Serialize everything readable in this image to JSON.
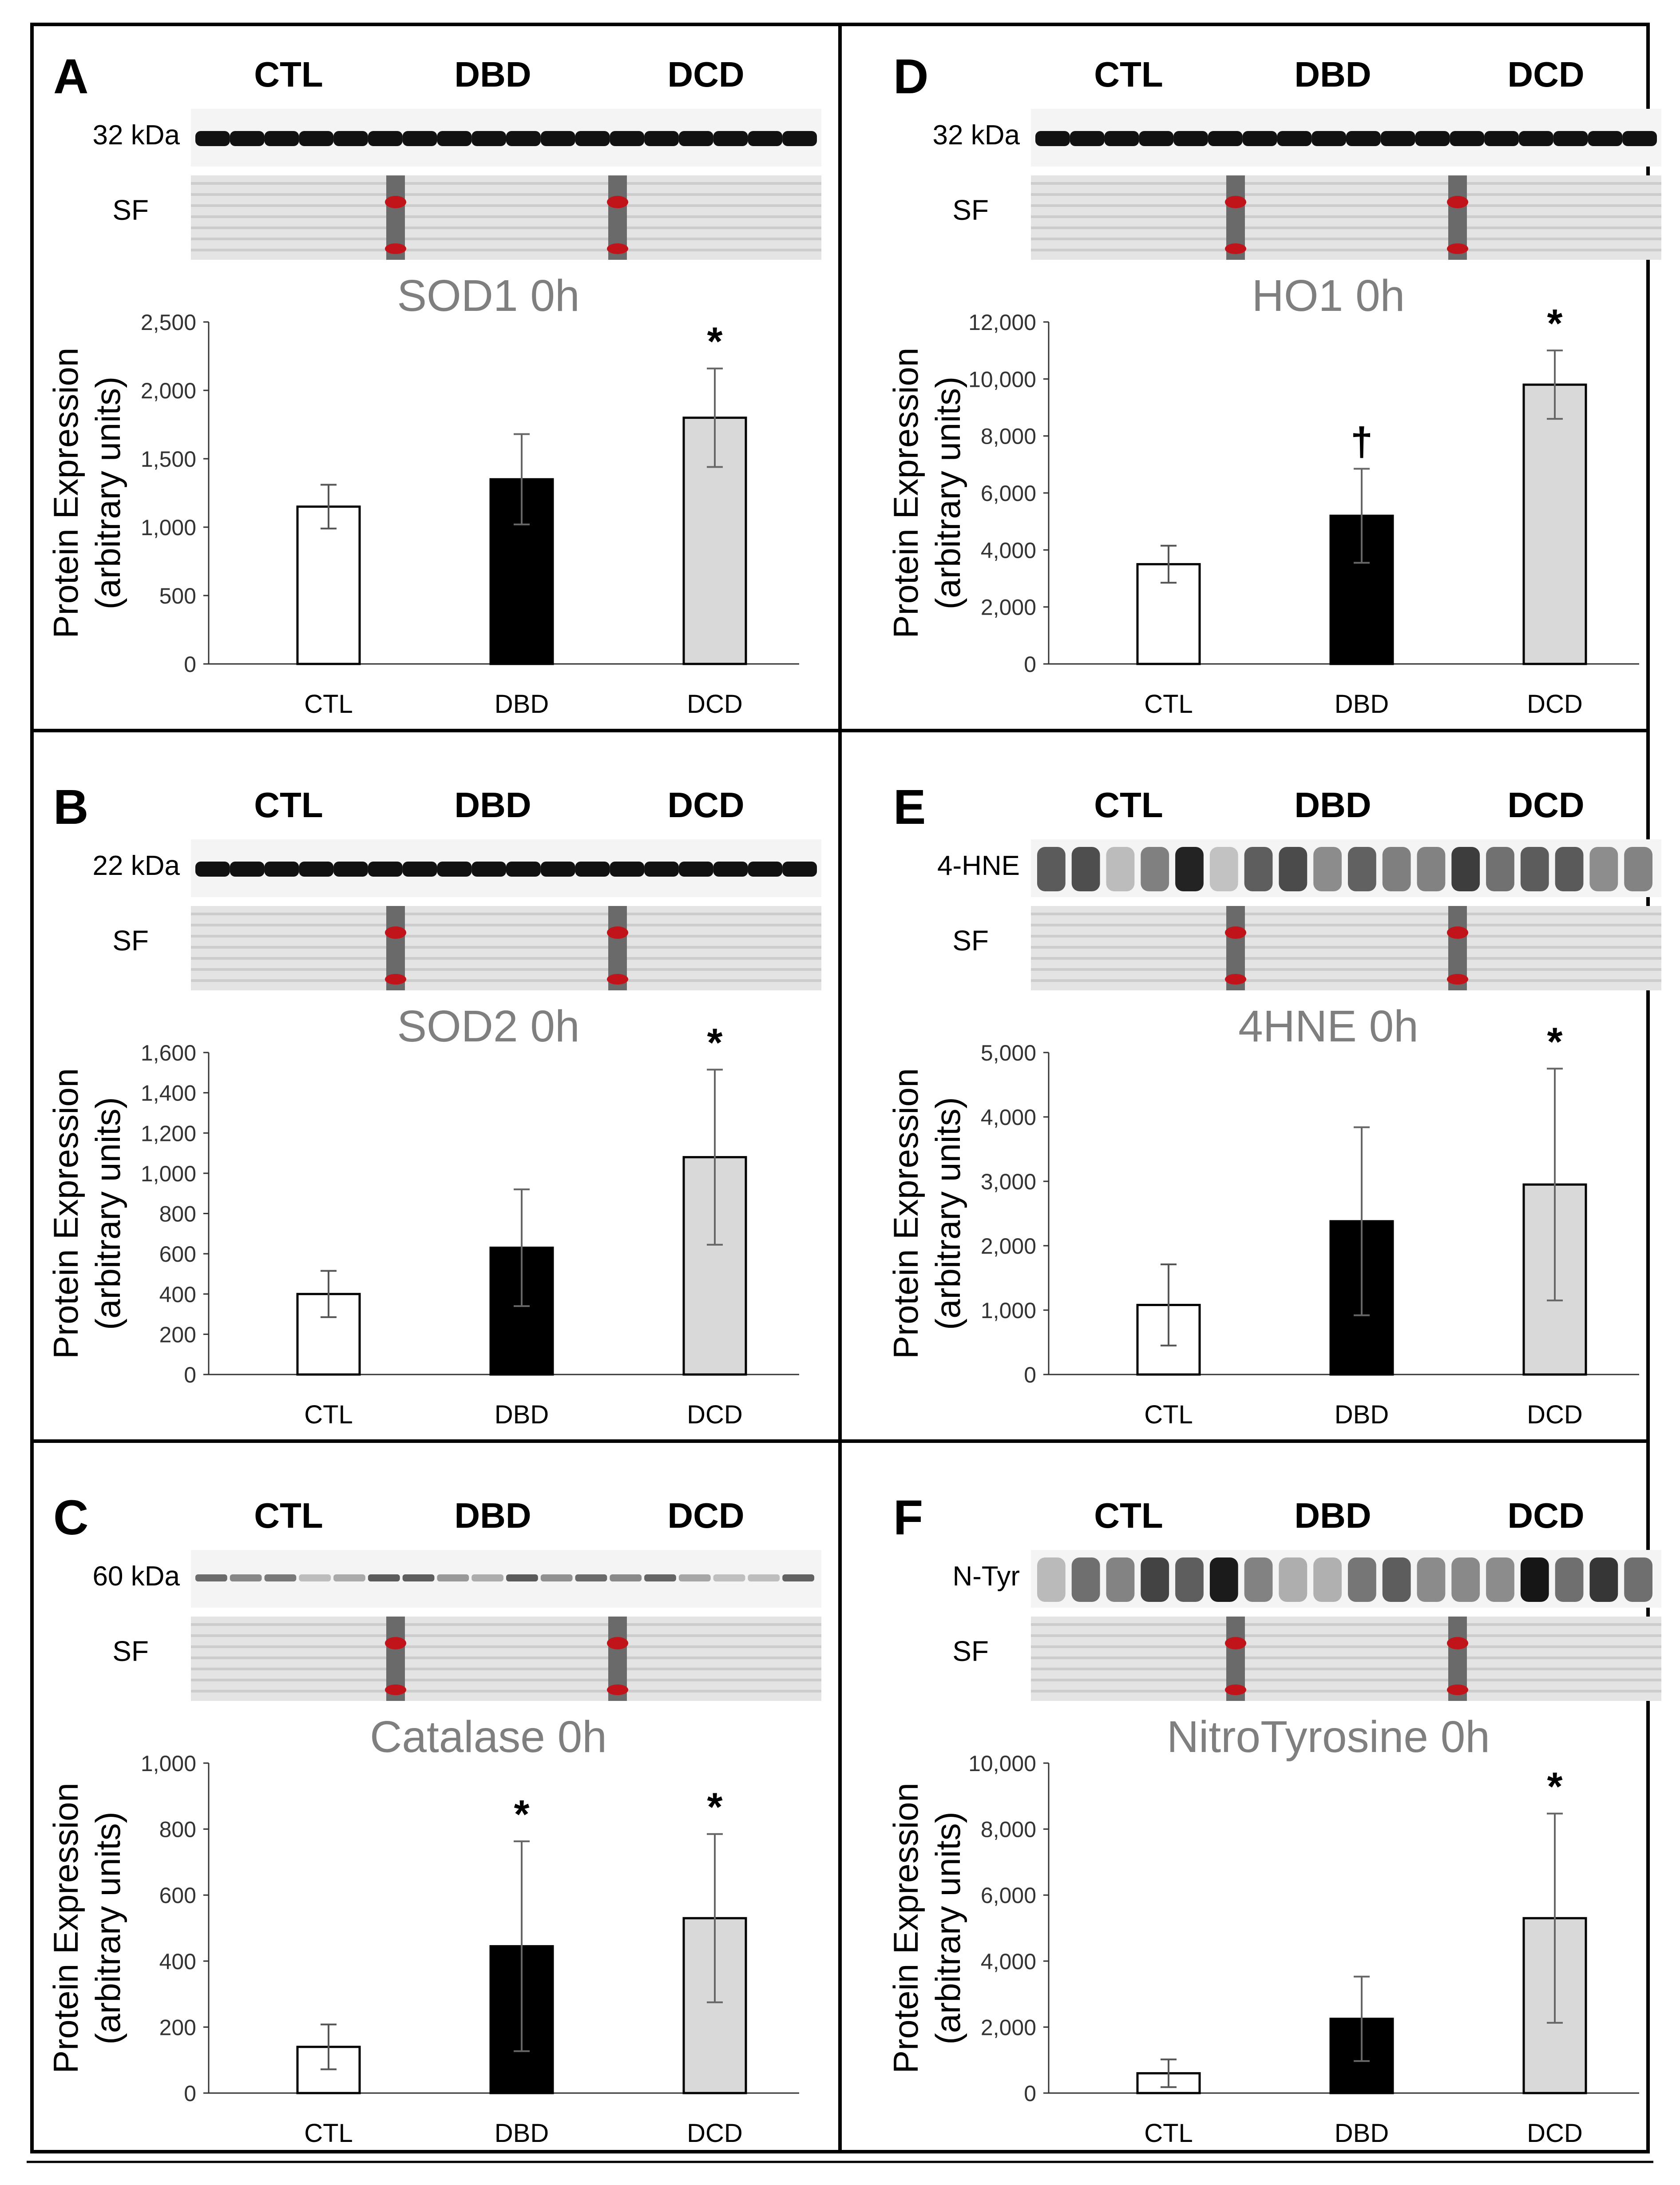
{
  "figure": {
    "panels": [
      {
        "letter": "A",
        "blot": {
          "groups": [
            "CTL",
            "DBD",
            "DCD"
          ],
          "marker": "32 kDa",
          "loading_label": "SF",
          "band_style": "solid"
        },
        "chart_data": {
          "type": "bar",
          "title": "SOD1 0h",
          "categories": [
            "CTL",
            "DBD",
            "DCD"
          ],
          "values": [
            1150,
            1350,
            1800
          ],
          "errors": [
            160,
            330,
            360
          ],
          "significance": [
            "",
            "",
            "*"
          ],
          "bar_colors": [
            "#ffffff",
            "#000000",
            "#d9d9d9"
          ],
          "ylim": [
            0,
            2500
          ],
          "yticks": [
            0,
            500,
            1000,
            1500,
            2000,
            2500
          ],
          "ytick_labels": [
            "0",
            "500",
            "1,000",
            "1,500",
            "2,000",
            "2,500"
          ],
          "ylabel": [
            "Protein Expression",
            "(arbitrary units)"
          ],
          "xlabel": ""
        }
      },
      {
        "letter": "D",
        "blot": {
          "groups": [
            "CTL",
            "DBD",
            "DCD"
          ],
          "marker": "32 kDa",
          "loading_label": "SF",
          "band_style": "solid"
        },
        "chart_data": {
          "type": "bar",
          "title": "HO1 0h",
          "categories": [
            "CTL",
            "DBD",
            "DCD"
          ],
          "values": [
            3500,
            5200,
            9800
          ],
          "errors": [
            650,
            1650,
            1200
          ],
          "significance": [
            "",
            "†",
            "*"
          ],
          "bar_colors": [
            "#ffffff",
            "#000000",
            "#d9d9d9"
          ],
          "ylim": [
            0,
            12000
          ],
          "yticks": [
            0,
            2000,
            4000,
            6000,
            8000,
            10000,
            12000
          ],
          "ytick_labels": [
            "0",
            "2,000",
            "4,000",
            "6,000",
            "8,000",
            "10,000",
            "12,000"
          ],
          "ylabel": [
            "Protein Expression",
            "(arbitrary units)"
          ],
          "xlabel": ""
        }
      },
      {
        "letter": "B",
        "blot": {
          "groups": [
            "CTL",
            "DBD",
            "DCD"
          ],
          "marker": "22 kDa",
          "loading_label": "SF",
          "band_style": "solid"
        },
        "chart_data": {
          "type": "bar",
          "title": "SOD2 0h",
          "categories": [
            "CTL",
            "DBD",
            "DCD"
          ],
          "values": [
            400,
            630,
            1080
          ],
          "errors": [
            115,
            290,
            435
          ],
          "significance": [
            "",
            "",
            "*"
          ],
          "bar_colors": [
            "#ffffff",
            "#000000",
            "#d9d9d9"
          ],
          "ylim": [
            0,
            1600
          ],
          "yticks": [
            0,
            200,
            400,
            600,
            800,
            1000,
            1200,
            1400,
            1600
          ],
          "ytick_labels": [
            "0",
            "200",
            "400",
            "600",
            "800",
            "1,000",
            "1,200",
            "1,400",
            "1,600"
          ],
          "ylabel": [
            "Protein Expression",
            "(arbitrary units)"
          ],
          "xlabel": ""
        }
      },
      {
        "letter": "E",
        "blot": {
          "groups": [
            "CTL",
            "DBD",
            "DCD"
          ],
          "marker": "4-HNE",
          "loading_label": "SF",
          "band_style": "smear"
        },
        "chart_data": {
          "type": "bar",
          "title": "4HNE 0h",
          "categories": [
            "CTL",
            "DBD",
            "DCD"
          ],
          "values": [
            1080,
            2380,
            2950
          ],
          "errors": [
            630,
            1460,
            1800
          ],
          "significance": [
            "",
            "",
            "*"
          ],
          "bar_colors": [
            "#ffffff",
            "#000000",
            "#d9d9d9"
          ],
          "ylim": [
            0,
            5000
          ],
          "yticks": [
            0,
            1000,
            2000,
            3000,
            4000,
            5000
          ],
          "ytick_labels": [
            "0",
            "1,000",
            "2,000",
            "3,000",
            "4,000",
            "5,000"
          ],
          "ylabel": [
            "Protein Expression",
            "(arbitrary units)"
          ],
          "xlabel": ""
        }
      },
      {
        "letter": "C",
        "blot": {
          "groups": [
            "CTL",
            "DBD",
            "DCD"
          ],
          "marker": "60 kDa",
          "loading_label": "SF",
          "band_style": "faint"
        },
        "chart_data": {
          "type": "bar",
          "title": "Catalase 0h",
          "categories": [
            "CTL",
            "DBD",
            "DCD"
          ],
          "values": [
            140,
            445,
            530
          ],
          "errors": [
            68,
            318,
            255
          ],
          "significance": [
            "",
            "*",
            "*"
          ],
          "bar_colors": [
            "#ffffff",
            "#000000",
            "#d9d9d9"
          ],
          "ylim": [
            0,
            1000
          ],
          "yticks": [
            0,
            200,
            400,
            600,
            800,
            1000
          ],
          "ytick_labels": [
            "0",
            "200",
            "400",
            "600",
            "800",
            "1,000"
          ],
          "ylabel": [
            "Protein Expression",
            "(arbitrary units)"
          ],
          "xlabel": ""
        }
      },
      {
        "letter": "F",
        "blot": {
          "groups": [
            "CTL",
            "DBD",
            "DCD"
          ],
          "marker": "N-Tyr",
          "loading_label": "SF",
          "band_style": "smear"
        },
        "chart_data": {
          "type": "bar",
          "title": "NitroTyrosine 0h",
          "categories": [
            "CTL",
            "DBD",
            "DCD"
          ],
          "values": [
            600,
            2250,
            5300
          ],
          "errors": [
            420,
            1280,
            3170
          ],
          "significance": [
            "",
            "",
            "*"
          ],
          "bar_colors": [
            "#ffffff",
            "#000000",
            "#d9d9d9"
          ],
          "ylim": [
            0,
            10000
          ],
          "yticks": [
            0,
            2000,
            4000,
            6000,
            8000,
            10000
          ],
          "ytick_labels": [
            "0",
            "2,000",
            "4,000",
            "6,000",
            "8,000",
            "10,000"
          ],
          "ylabel": [
            "Protein Expression",
            "(arbitrary units)"
          ],
          "xlabel": ""
        }
      }
    ]
  }
}
